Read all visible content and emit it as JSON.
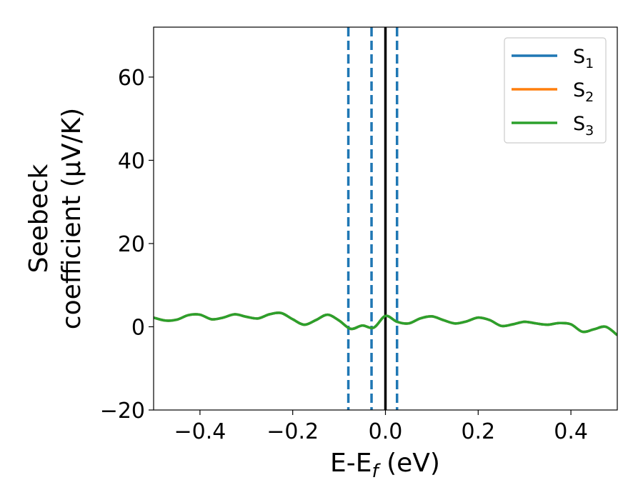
{
  "chart_data": {
    "type": "line",
    "xlabel": "E-E",
    "xlabel_sub": "f",
    "xlabel_unit": " (eV)",
    "ylabel_line1": "Seebeck",
    "ylabel_line2": "coefficient  (μV/K)",
    "xlim": [
      -0.5,
      0.5
    ],
    "ylim": [
      -20,
      72
    ],
    "xticks": [
      -0.4,
      -0.2,
      0.0,
      0.2,
      0.4
    ],
    "xtick_labels": [
      "−0.4",
      "−0.2",
      "0.0",
      "0.2",
      "0.4"
    ],
    "yticks": [
      -20,
      0,
      20,
      40,
      60
    ],
    "ytick_labels": [
      "−20",
      "0",
      "20",
      "40",
      "60"
    ],
    "grid": false,
    "legend_position": "top-right",
    "x": [
      -0.5,
      -0.475,
      -0.45,
      -0.425,
      -0.4,
      -0.375,
      -0.35,
      -0.325,
      -0.3,
      -0.275,
      -0.25,
      -0.225,
      -0.2,
      -0.175,
      -0.15,
      -0.125,
      -0.1,
      -0.075,
      -0.05,
      -0.025,
      0.0,
      0.025,
      0.05,
      0.075,
      0.1,
      0.125,
      0.15,
      0.175,
      0.2,
      0.225,
      0.25,
      0.275,
      0.3,
      0.325,
      0.35,
      0.375,
      0.4,
      0.425,
      0.45,
      0.475,
      0.5
    ],
    "series": [
      {
        "name": "S",
        "sub": "1",
        "color": "#1f77b4",
        "values": [
          2.2,
          1.5,
          1.7,
          2.8,
          2.9,
          1.8,
          2.2,
          3.0,
          2.4,
          2.0,
          3.0,
          3.3,
          1.8,
          0.5,
          1.6,
          2.9,
          1.5,
          -0.5,
          0.3,
          -0.2,
          2.6,
          1.2,
          0.8,
          2.0,
          2.5,
          1.6,
          0.8,
          1.3,
          2.2,
          1.6,
          0.2,
          0.6,
          1.2,
          0.8,
          0.5,
          0.9,
          0.6,
          -1.2,
          -0.6,
          0.0,
          -2.0
        ]
      },
      {
        "name": "S",
        "sub": "2",
        "color": "#ff7f0e",
        "values": [
          2.2,
          1.5,
          1.7,
          2.8,
          2.9,
          1.8,
          2.2,
          3.0,
          2.4,
          2.0,
          3.0,
          3.3,
          1.8,
          0.5,
          1.6,
          2.9,
          1.5,
          -0.5,
          0.3,
          -0.2,
          2.6,
          1.2,
          0.8,
          2.0,
          2.5,
          1.6,
          0.8,
          1.3,
          2.2,
          1.6,
          0.2,
          0.6,
          1.2,
          0.8,
          0.5,
          0.9,
          0.6,
          -1.2,
          -0.6,
          0.0,
          -2.0
        ]
      },
      {
        "name": "S",
        "sub": "3",
        "color": "#2ca02c",
        "values": [
          2.2,
          1.5,
          1.7,
          2.8,
          2.9,
          1.8,
          2.2,
          3.0,
          2.4,
          2.0,
          3.0,
          3.3,
          1.8,
          0.5,
          1.6,
          2.9,
          1.5,
          -0.5,
          0.3,
          -0.2,
          2.6,
          1.2,
          0.8,
          2.0,
          2.5,
          1.6,
          0.8,
          1.3,
          2.2,
          1.6,
          0.2,
          0.6,
          1.2,
          0.8,
          0.5,
          0.9,
          0.6,
          -1.2,
          -0.6,
          0.0,
          -2.0
        ]
      }
    ],
    "vlines": [
      {
        "x": -0.08,
        "style": "dashed",
        "color": "#1f77b4"
      },
      {
        "x": -0.03,
        "style": "dashed",
        "color": "#1f77b4"
      },
      {
        "x": 0.0,
        "style": "solid",
        "color": "#000000"
      },
      {
        "x": 0.025,
        "style": "dashed",
        "color": "#1f77b4"
      }
    ]
  }
}
